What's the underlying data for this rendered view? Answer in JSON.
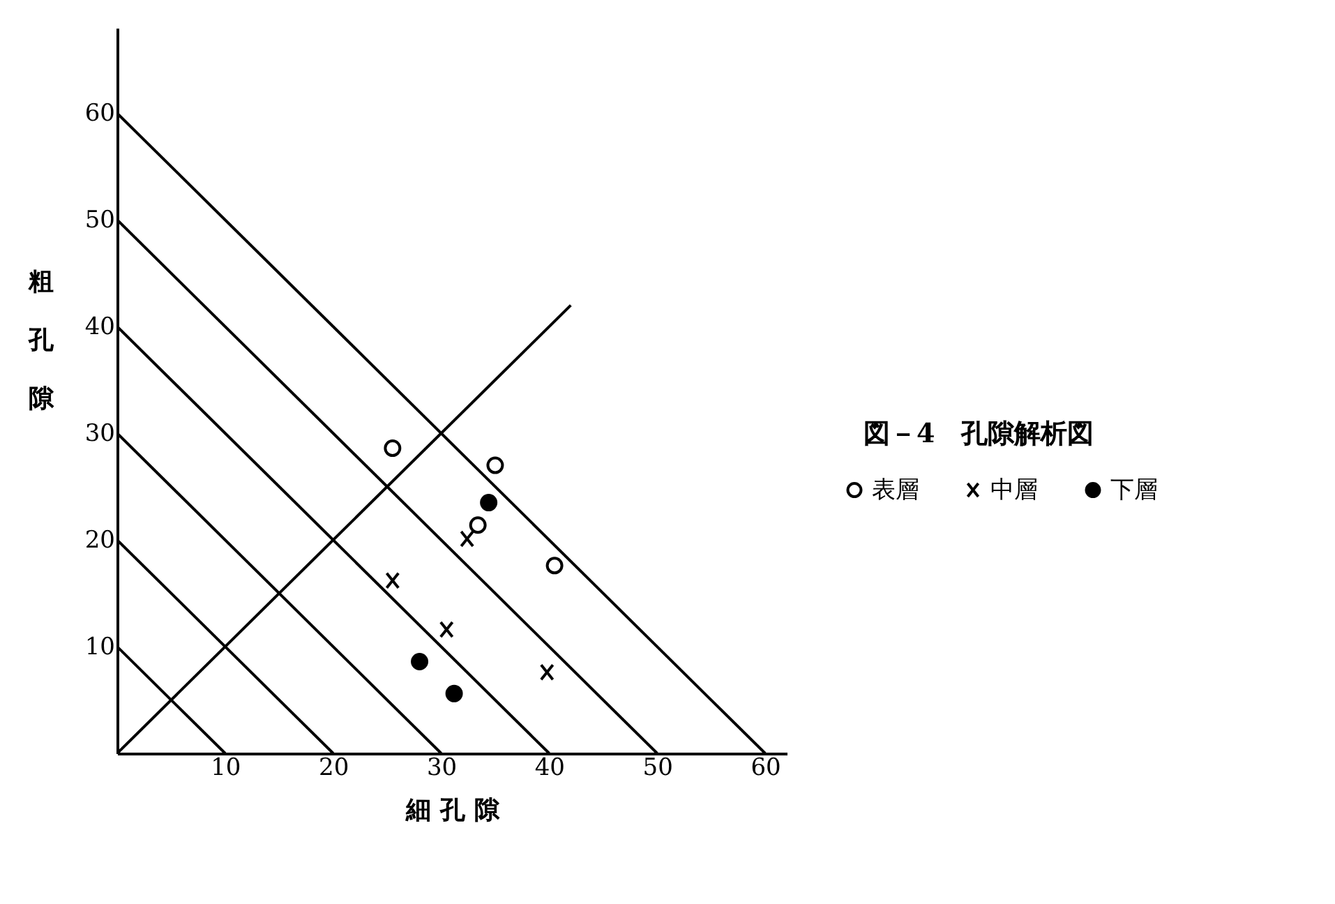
{
  "chart_data": {
    "type": "scatter",
    "title": "図－4　孔隙解析図",
    "xlabel": "細 孔 隙",
    "ylabel": "粗孔隙",
    "xlim": [
      0,
      62
    ],
    "ylim": [
      0,
      68
    ],
    "xticks": [
      10,
      20,
      30,
      40,
      50,
      60
    ],
    "yticks": [
      10,
      20,
      30,
      40,
      50,
      60
    ],
    "grid": false,
    "legend": "right",
    "series": [
      {
        "type": "line",
        "color": "#000000",
        "x": [
          0,
          10
        ],
        "values": [
          10,
          0
        ]
      },
      {
        "type": "line",
        "color": "#000000",
        "x": [
          0,
          20
        ],
        "values": [
          20,
          0
        ]
      },
      {
        "type": "line",
        "color": "#000000",
        "x": [
          0,
          30
        ],
        "values": [
          30,
          0
        ]
      },
      {
        "type": "line",
        "color": "#000000",
        "x": [
          0,
          40
        ],
        "values": [
          40,
          0
        ]
      },
      {
        "type": "line",
        "color": "#000000",
        "x": [
          0,
          50
        ],
        "values": [
          50,
          0
        ]
      },
      {
        "type": "line",
        "color": "#000000",
        "x": [
          0,
          60
        ],
        "values": [
          60,
          0
        ]
      },
      {
        "type": "line",
        "color": "#000000",
        "x": [
          0,
          42
        ],
        "values": [
          0,
          42
        ]
      },
      {
        "name": "表層",
        "color": "#000000",
        "marker": "circle",
        "x": [
          25.5,
          35.0,
          40.5,
          33.4
        ],
        "values": [
          28.6,
          27.0,
          17.6,
          21.4
        ]
      },
      {
        "name": "中層",
        "color": "#000000",
        "marker": "cross",
        "x": [
          32.4,
          25.5,
          30.5,
          39.8
        ],
        "values": [
          20.1,
          16.2,
          11.6,
          7.6
        ]
      },
      {
        "name": "下層",
        "color": "#000000",
        "marker": "circle",
        "x": [
          34.4,
          28.0,
          31.2
        ],
        "values": [
          23.5,
          8.6,
          5.6
        ]
      }
    ]
  }
}
